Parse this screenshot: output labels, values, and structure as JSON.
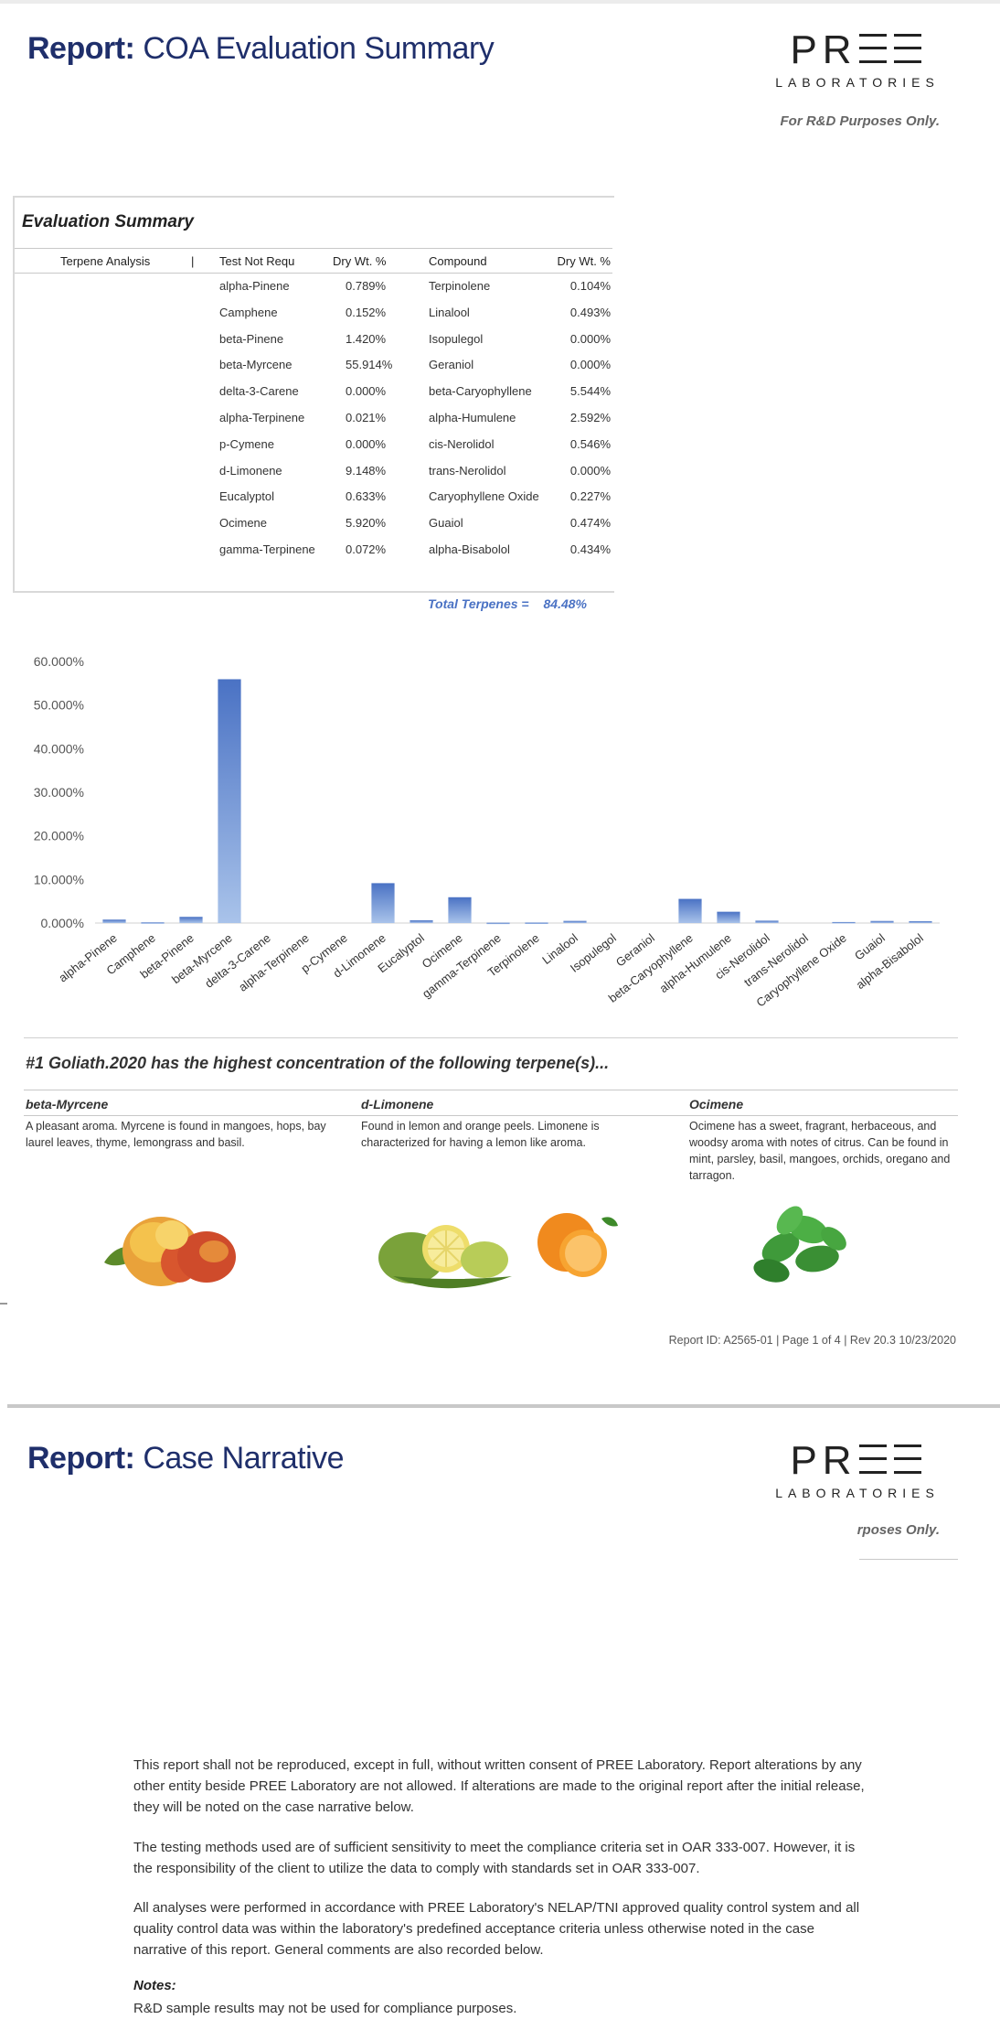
{
  "page1": {
    "report_label": "Report:",
    "report_title": "COA Evaluation Summary",
    "logo_main": "PR☰☰",
    "logo_sub": "LABORATORIES",
    "rd_note": "For R&D Purposes Only.",
    "summary": {
      "title": "Evaluation Summary",
      "headers": [
        "Terpene Analysis",
        "|",
        "Test Not Requ",
        "Dry Wt. %",
        "Compound",
        "Dry Wt. %"
      ],
      "left_rows": [
        {
          "name": "alpha-Pinene",
          "value": "0.789%"
        },
        {
          "name": "Camphene",
          "value": "0.152%"
        },
        {
          "name": "beta-Pinene",
          "value": "1.420%"
        },
        {
          "name": "beta-Myrcene",
          "value": "55.914%"
        },
        {
          "name": "delta-3-Carene",
          "value": "0.000%"
        },
        {
          "name": "alpha-Terpinene",
          "value": "0.021%"
        },
        {
          "name": "p-Cymene",
          "value": "0.000%"
        },
        {
          "name": "d-Limonene",
          "value": "9.148%"
        },
        {
          "name": "Eucalyptol",
          "value": "0.633%"
        },
        {
          "name": "Ocimene",
          "value": "5.920%"
        },
        {
          "name": "gamma-Terpinene",
          "value": "0.072%"
        }
      ],
      "right_rows": [
        {
          "name": "Terpinolene",
          "value": "0.104%"
        },
        {
          "name": "Linalool",
          "value": "0.493%"
        },
        {
          "name": "Isopulegol",
          "value": "0.000%"
        },
        {
          "name": "Geraniol",
          "value": "0.000%"
        },
        {
          "name": "beta-Caryophyllene",
          "value": "5.544%"
        },
        {
          "name": "alpha-Humulene",
          "value": "2.592%"
        },
        {
          "name": "cis-Nerolidol",
          "value": "0.546%"
        },
        {
          "name": "trans-Nerolidol",
          "value": "0.000%"
        },
        {
          "name": "Caryophyllene Oxide",
          "value": "0.227%"
        },
        {
          "name": "Guaiol",
          "value": "0.474%"
        },
        {
          "name": "alpha-Bisabolol",
          "value": "0.434%"
        }
      ],
      "total_label": "Total Terpenes =",
      "total_value": "84.48%"
    },
    "headline": "#1 Goliath.2020 has the highest concentration of the following terpene(s)...",
    "terpenes": [
      {
        "title": "beta-Myrcene",
        "desc": "A pleasant aroma. Myrcene is found in mangoes, hops, bay laurel leaves, thyme, lemongrass and basil."
      },
      {
        "title": "d-Limonene",
        "desc": "Found in lemon and orange peels. Limonene is characterized for having a lemon like aroma."
      },
      {
        "title": "Ocimene",
        "desc": "Ocimene has a sweet, fragrant, herbaceous, and woodsy aroma with notes of citrus. Can be found in mint, parsley, basil, mangoes, orchids, oregano and tarragon."
      }
    ],
    "footer": "Report ID: A2565-01  |   Page 1 of 4   |   Rev 20.3  10/23/2020"
  },
  "chart_data": {
    "type": "bar",
    "categories": [
      "alpha-Pinene",
      "Camphene",
      "beta-Pinene",
      "beta-Myrcene",
      "delta-3-Carene",
      "alpha-Terpinene",
      "p-Cymene",
      "d-Limonene",
      "Eucalyptol",
      "Ocimene",
      "gamma-Terpinene",
      "Terpinolene",
      "Linalool",
      "Isopulegol",
      "Geraniol",
      "beta-Caryophyllene",
      "alpha-Humulene",
      "cis-Nerolidol",
      "trans-Nerolidol",
      "Caryophyllene Oxide",
      "Guaiol",
      "alpha-Bisabolol"
    ],
    "values": [
      0.789,
      0.152,
      1.42,
      55.914,
      0.0,
      0.021,
      0.0,
      9.148,
      0.633,
      5.92,
      0.072,
      0.104,
      0.493,
      0.0,
      0.0,
      5.544,
      2.592,
      0.546,
      0.0,
      0.227,
      0.474,
      0.434
    ],
    "yticks": [
      "0.000%",
      "10.000%",
      "20.000%",
      "30.000%",
      "40.000%",
      "50.000%",
      "60.000%"
    ],
    "ylim": [
      0,
      60
    ],
    "color": "#4a72c4"
  },
  "page2": {
    "report_label": "Report:",
    "report_title": "Case Narrative",
    "logo_main": "PR☰☰",
    "logo_sub": "LABORATORIES",
    "rd_note": "rposes Only.",
    "para1": "This report shall not be reproduced, except in full, without written consent of PREE Laboratory. Report alterations by any other entity beside PREE Laboratory are not allowed. If alterations are made to the original report after the initial release, they will be noted on the case narrative below.",
    "para2": "The testing methods used are of sufficient sensitivity to meet the compliance criteria set in OAR 333-007. However, it is the responsibility of the client to utilize the data to comply with standards set in OAR 333-007.",
    "para3": "All analyses were performed in accordance with PREE Laboratory's NELAP/TNI approved quality control system and all quality control data was within the laboratory's predefined acceptance criteria unless otherwise noted in the case narrative of this report. General comments are also recorded below.",
    "notes_title": "Notes:",
    "notes_text": "R&D sample results may not be used for compliance purposes."
  }
}
